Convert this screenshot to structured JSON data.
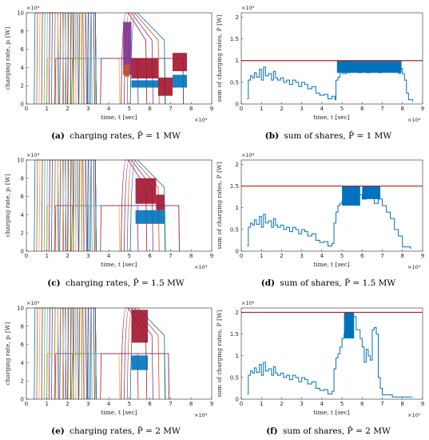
{
  "colors": {
    "blue": "#0072BD",
    "red": "#D95319",
    "yellow": "#EDB120",
    "purple": "#7E2F8E",
    "green": "#77AC30",
    "cyan": "#4DBEEE",
    "maroon": "#A2142F",
    "limit": "#B2221A"
  },
  "chart_data": [
    {
      "id": "a",
      "type": "line",
      "caption_label": "(a)",
      "caption_text": "charging rates, P̂ = 1 MW",
      "xlabel": "time, t [sec]",
      "ylabel": "charging rate, pᵢ [W]",
      "x_exponent": "×10⁴",
      "y_exponent": "×10⁴",
      "xlim": [
        0,
        9
      ],
      "ylim": [
        0,
        10
      ],
      "xticks": [
        "0",
        "1",
        "2",
        "3",
        "4",
        "5",
        "6",
        "7",
        "8",
        "9"
      ],
      "yticks": [
        "0",
        "2",
        "4",
        "6",
        "8",
        "10"
      ],
      "grid": false,
      "end": 7.6,
      "bands": [
        {
          "x0": 4.7,
          "x1": 5.1,
          "ylo": 3.2,
          "yhi": 9.0,
          "color": "#7E2F8E"
        },
        {
          "x0": 4.75,
          "x1": 5.0,
          "ylo": 3.0,
          "yhi": 4.3,
          "color": "#D95319"
        },
        {
          "x0": 5.1,
          "x1": 6.4,
          "ylo": 2.8,
          "yhi": 5.0,
          "color": "#A2142F"
        },
        {
          "x0": 5.1,
          "x1": 6.4,
          "ylo": 1.8,
          "yhi": 2.6,
          "color": "#0072BD"
        },
        {
          "x0": 6.4,
          "x1": 7.1,
          "ylo": 0.9,
          "yhi": 2.9,
          "color": "#A2142F"
        },
        {
          "x0": 7.1,
          "x1": 7.8,
          "ylo": 3.6,
          "yhi": 5.6,
          "color": "#A2142F"
        },
        {
          "x0": 7.1,
          "x1": 7.8,
          "ylo": 1.8,
          "yhi": 3.2,
          "color": "#0072BD"
        }
      ]
    },
    {
      "id": "b",
      "type": "line",
      "caption_label": "(b)",
      "caption_text": "sum of shares, P̂ = 1 MW",
      "xlabel": "time, t [sec]",
      "ylabel": "sum of charging rates, P [W]",
      "x_exponent": "×10⁴",
      "y_exponent": "×10⁶",
      "xlim": [
        0,
        9
      ],
      "ylim": [
        0,
        2.1
      ],
      "xticks": [
        "0",
        "1",
        "2",
        "3",
        "4",
        "5",
        "6",
        "7",
        "8",
        "9"
      ],
      "yticks": [
        "0",
        "0.5",
        "1",
        "1.5",
        "2"
      ],
      "grid": false,
      "limit": 1.0,
      "x": [
        0.3,
        0.35,
        0.45,
        0.55,
        0.65,
        0.75,
        0.9,
        1.0,
        1.1,
        1.2,
        1.35,
        1.5,
        1.6,
        1.7,
        1.8,
        1.95,
        2.1,
        2.25,
        2.4,
        2.55,
        2.7,
        2.85,
        3.0,
        3.15,
        3.3,
        3.5,
        3.7,
        3.9,
        4.1,
        4.3,
        4.5,
        4.65,
        4.7,
        4.8,
        4.9,
        5.0,
        5.2,
        5.4,
        5.6,
        5.8,
        6.0,
        6.2,
        6.4,
        6.6,
        6.8,
        7.0,
        7.2,
        7.4,
        7.6,
        7.8,
        7.9,
        8.0,
        8.1,
        8.2,
        8.3,
        8.5
      ],
      "y": [
        0.12,
        0.55,
        0.65,
        0.6,
        0.72,
        0.62,
        0.8,
        0.55,
        0.85,
        0.65,
        0.7,
        0.55,
        0.75,
        0.6,
        0.55,
        0.6,
        0.5,
        0.55,
        0.45,
        0.55,
        0.5,
        0.4,
        0.5,
        0.45,
        0.35,
        0.4,
        0.25,
        0.2,
        0.22,
        0.12,
        0.18,
        0.1,
        0.55,
        0.62,
        0.75,
        0.7,
        0.72,
        0.76,
        0.78,
        0.72,
        0.75,
        0.72,
        0.78,
        0.75,
        0.72,
        0.82,
        0.78,
        0.8,
        0.74,
        0.7,
        0.82,
        0.7,
        0.55,
        0.25,
        0.1,
        0.05
      ],
      "band": {
        "x0": 4.75,
        "x1": 7.95,
        "ylo": 0.72,
        "yhi": 1.0
      }
    },
    {
      "id": "c",
      "type": "line",
      "caption_label": "(c)",
      "caption_text": "charging rates, P̂ = 1.5 MW",
      "xlabel": "time, t [sec]",
      "ylabel": "charging rate, pᵢ [W]",
      "x_exponent": "×10⁴",
      "y_exponent": "×10⁴",
      "xlim": [
        0,
        9
      ],
      "ylim": [
        0,
        10
      ],
      "xticks": [
        "0",
        "1",
        "2",
        "3",
        "4",
        "5",
        "6",
        "7",
        "8",
        "9"
      ],
      "yticks": [
        "0",
        "2",
        "4",
        "6",
        "8",
        "10"
      ],
      "grid": false,
      "end": 7.4,
      "bands": [
        {
          "x0": 5.3,
          "x1": 6.3,
          "ylo": 5.2,
          "yhi": 8.0,
          "color": "#A2142F"
        },
        {
          "x0": 6.3,
          "x1": 6.7,
          "ylo": 4.5,
          "yhi": 6.2,
          "color": "#A2142F"
        },
        {
          "x0": 5.3,
          "x1": 6.7,
          "ylo": 3.0,
          "yhi": 4.5,
          "color": "#0072BD"
        }
      ]
    },
    {
      "id": "d",
      "type": "line",
      "caption_label": "(d)",
      "caption_text": "sum of shares, P̂ = 1.5 MW",
      "xlabel": "time, t [sec]",
      "ylabel": "sum of charging rates, P [W]",
      "x_exponent": "×10⁴",
      "y_exponent": "×10⁶",
      "xlim": [
        0,
        9
      ],
      "ylim": [
        0,
        2.1
      ],
      "xticks": [
        "0",
        "1",
        "2",
        "3",
        "4",
        "5",
        "6",
        "7",
        "8",
        "9"
      ],
      "yticks": [
        "0",
        "0.5",
        "1",
        "1.5",
        "2"
      ],
      "grid": false,
      "limit": 1.5,
      "x": [
        0.3,
        0.35,
        0.45,
        0.55,
        0.65,
        0.75,
        0.9,
        1.0,
        1.1,
        1.2,
        1.35,
        1.5,
        1.6,
        1.7,
        1.8,
        1.95,
        2.1,
        2.25,
        2.4,
        2.55,
        2.7,
        2.85,
        3.0,
        3.15,
        3.3,
        3.5,
        3.7,
        3.9,
        4.1,
        4.3,
        4.5,
        4.6,
        4.7,
        4.8,
        4.9,
        5.0,
        5.2,
        5.4,
        5.6,
        5.8,
        6.0,
        6.2,
        6.4,
        6.6,
        6.8,
        7.0,
        7.2,
        7.4,
        7.6,
        7.8,
        8.0,
        8.4
      ],
      "y": [
        0.12,
        0.55,
        0.65,
        0.6,
        0.72,
        0.62,
        0.8,
        0.55,
        0.85,
        0.65,
        0.7,
        0.55,
        0.75,
        0.6,
        0.55,
        0.6,
        0.5,
        0.55,
        0.45,
        0.55,
        0.5,
        0.4,
        0.5,
        0.45,
        0.35,
        0.4,
        0.25,
        0.2,
        0.22,
        0.12,
        0.18,
        0.65,
        0.9,
        1.05,
        1.1,
        1.15,
        1.2,
        1.25,
        1.1,
        1.3,
        1.2,
        1.25,
        1.3,
        1.1,
        1.2,
        1.05,
        0.9,
        0.75,
        0.5,
        0.35,
        0.1,
        0.05
      ],
      "bands": [
        {
          "x0": 5.0,
          "x1": 5.9,
          "ylo": 1.05,
          "yhi": 1.5
        },
        {
          "x0": 6.0,
          "x1": 6.9,
          "ylo": 1.2,
          "yhi": 1.5
        }
      ]
    },
    {
      "id": "e",
      "type": "line",
      "caption_label": "(e)",
      "caption_text": "charging rates, P̂ = 2 MW",
      "xlabel": "time, t [sec]",
      "ylabel": "charging rate, pᵢ [W]",
      "x_exponent": "×10⁴",
      "y_exponent": "×10⁴",
      "xlim": [
        0,
        9
      ],
      "ylim": [
        0,
        10
      ],
      "xticks": [
        "0",
        "1",
        "2",
        "3",
        "4",
        "5",
        "6",
        "7",
        "8",
        "9"
      ],
      "yticks": [
        "0",
        "2",
        "4",
        "6",
        "8",
        "10"
      ],
      "grid": false,
      "end": 6.9,
      "bands": [
        {
          "x0": 5.1,
          "x1": 5.9,
          "ylo": 6.2,
          "yhi": 9.8,
          "color": "#A2142F"
        },
        {
          "x0": 5.1,
          "x1": 5.9,
          "ylo": 3.2,
          "yhi": 4.8,
          "color": "#0072BD"
        }
      ]
    },
    {
      "id": "f",
      "type": "line",
      "caption_label": "(f)",
      "caption_text": "sum of shares, P̂ = 2 MW",
      "xlabel": "time, t [sec]",
      "ylabel": "sum of charging rates, P [W]",
      "x_exponent": "×10⁴",
      "y_exponent": "×10⁶",
      "xlim": [
        0,
        9
      ],
      "ylim": [
        0,
        2.1
      ],
      "xticks": [
        "0",
        "1",
        "2",
        "3",
        "4",
        "5",
        "6",
        "7",
        "8",
        "9"
      ],
      "yticks": [
        "0",
        "0.5",
        "1",
        "1.5",
        "2"
      ],
      "grid": false,
      "limit": 2.0,
      "x": [
        0.3,
        0.35,
        0.45,
        0.55,
        0.65,
        0.75,
        0.9,
        1.0,
        1.1,
        1.2,
        1.35,
        1.5,
        1.6,
        1.7,
        1.8,
        1.95,
        2.1,
        2.25,
        2.4,
        2.55,
        2.7,
        2.85,
        3.0,
        3.15,
        3.3,
        3.5,
        3.7,
        3.9,
        4.1,
        4.3,
        4.5,
        4.6,
        4.7,
        4.8,
        4.9,
        5.0,
        5.1,
        5.3,
        5.5,
        5.7,
        5.9,
        6.0,
        6.1,
        6.2,
        6.3,
        6.4,
        6.5,
        6.6,
        6.7,
        6.8,
        6.9,
        7.0,
        7.5,
        8.5
      ],
      "y": [
        0.12,
        0.55,
        0.65,
        0.6,
        0.72,
        0.62,
        0.8,
        0.55,
        0.85,
        0.65,
        0.7,
        0.55,
        0.75,
        0.6,
        0.55,
        0.6,
        0.5,
        0.55,
        0.45,
        0.55,
        0.5,
        0.4,
        0.5,
        0.45,
        0.35,
        0.4,
        0.25,
        0.2,
        0.22,
        0.12,
        0.18,
        0.7,
        0.95,
        1.05,
        1.2,
        1.4,
        1.5,
        1.7,
        1.9,
        1.6,
        1.4,
        1.2,
        0.85,
        1.15,
        1.0,
        0.9,
        1.6,
        1.65,
        1.5,
        0.5,
        0.25,
        0.1,
        0.05,
        0.05
      ],
      "band": {
        "x0": 5.1,
        "x1": 5.6,
        "ylo": 1.4,
        "yhi": 2.0
      }
    }
  ]
}
